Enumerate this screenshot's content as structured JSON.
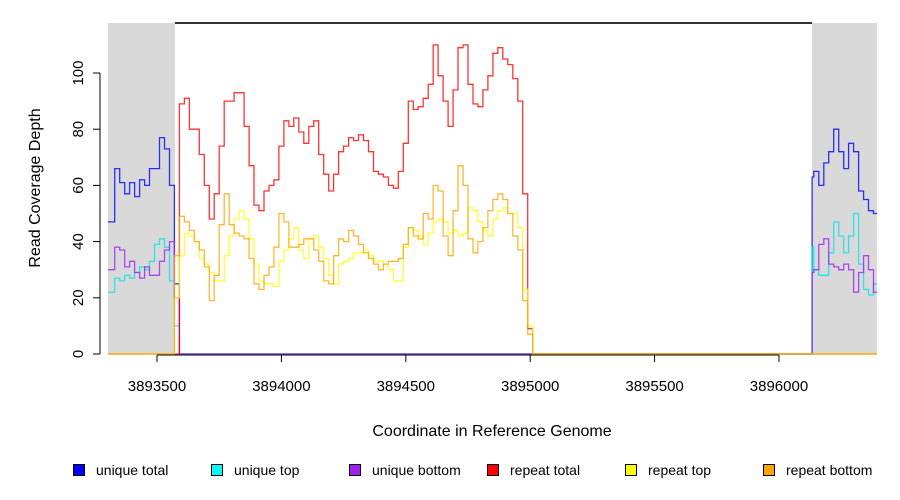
{
  "chart_data": {
    "type": "line",
    "line_style": "step",
    "title": "",
    "xlabel": "Coordinate in Reference Genome",
    "ylabel": "Read Coverage Depth",
    "xlim": [
      3893303,
      3896394
    ],
    "ylim": [
      0,
      117.8
    ],
    "xticks": [
      3893500,
      3894000,
      3894500,
      3895000,
      3895500,
      3896000
    ],
    "xtick_labels": [
      "3893500",
      "3894000",
      "3894500",
      "3895000",
      "3895500",
      "3896000"
    ],
    "yticks": [
      0,
      20,
      40,
      60,
      80,
      100
    ],
    "ytick_labels": [
      "0",
      "20",
      "40",
      "60",
      "80",
      "100"
    ],
    "grid": false,
    "legend_position": "bottom",
    "shaded_regions": [
      [
        3893303,
        3893572
      ],
      [
        3896133,
        3896394
      ]
    ],
    "shade_color": "#d9d9d9",
    "span_line": {
      "from": 3893572,
      "to": 3896133,
      "y": 117.8,
      "color": "#333333"
    },
    "series": [
      {
        "name": "unique total",
        "color": "#0000ff",
        "x": [
          3893303,
          3893310,
          3893330,
          3893350,
          3893370,
          3893390,
          3893410,
          3893430,
          3893450,
          3893470,
          3893490,
          3893510,
          3893530,
          3893550,
          3893570,
          3893590,
          3896132,
          3896133,
          3896140,
          3896160,
          3896180,
          3896200,
          3896220,
          3896240,
          3896260,
          3896280,
          3896300,
          3896320,
          3896340,
          3896360,
          3896380,
          3896394
        ],
        "y": [
          47,
          47,
          66,
          61,
          57,
          61,
          56,
          62,
          60,
          66,
          66,
          77,
          73,
          60,
          25,
          0,
          0,
          63,
          65,
          60,
          68,
          72,
          80,
          72,
          66,
          75,
          72,
          58,
          55,
          51,
          50,
          50
        ]
      },
      {
        "name": "unique top",
        "color": "#00e5ee",
        "x": [
          3893303,
          3893310,
          3893330,
          3893350,
          3893370,
          3893390,
          3893410,
          3893430,
          3893450,
          3893470,
          3893490,
          3893510,
          3893530,
          3893550,
          3893570,
          3893590,
          3896132,
          3896133,
          3896140,
          3896160,
          3896180,
          3896200,
          3896220,
          3896240,
          3896260,
          3896280,
          3896300,
          3896320,
          3896340,
          3896360,
          3896380,
          3896394
        ],
        "y": [
          22,
          22,
          27,
          26,
          28,
          27,
          29,
          31,
          30,
          33,
          39,
          41,
          38,
          26,
          10,
          0,
          0,
          38,
          30,
          28,
          28,
          36,
          47,
          42,
          36,
          42,
          50,
          32,
          23,
          21,
          25,
          25
        ]
      },
      {
        "name": "unique bottom",
        "color": "#a020f0",
        "x": [
          3893303,
          3893310,
          3893330,
          3893350,
          3893370,
          3893390,
          3893410,
          3893430,
          3893450,
          3893470,
          3893490,
          3893510,
          3893530,
          3893550,
          3893570,
          3893590,
          3896132,
          3896133,
          3896140,
          3896160,
          3896180,
          3896200,
          3896220,
          3896240,
          3896260,
          3896280,
          3896300,
          3896320,
          3896340,
          3896360,
          3896380,
          3896394
        ],
        "y": [
          30,
          30,
          38,
          37,
          31,
          33,
          29,
          27,
          31,
          28,
          28,
          33,
          37,
          40,
          20,
          0,
          0,
          29,
          30,
          39,
          41,
          32,
          31,
          30,
          32,
          30,
          22,
          29,
          35,
          30,
          22,
          22
        ]
      },
      {
        "name": "repeat total",
        "color": "#ff0000",
        "x_start": 3893570,
        "x_step": 20,
        "x_range": [
          3893303,
          3896394
        ],
        "y": [
          0,
          89,
          91,
          80,
          80,
          71,
          60,
          48,
          57,
          74,
          90,
          90,
          93,
          93,
          81,
          67,
          53,
          51,
          58,
          60,
          62,
          74,
          83,
          81,
          84,
          79,
          75,
          81,
          83,
          71,
          64,
          58,
          64,
          72,
          74,
          77,
          76,
          78,
          76,
          72,
          65,
          64,
          63,
          60,
          59,
          65,
          75,
          90,
          87,
          88,
          91,
          96,
          110,
          99,
          90,
          81,
          94,
          109,
          110,
          96,
          89,
          88,
          94,
          99,
          107,
          109,
          105,
          103,
          98,
          90,
          57,
          9,
          0
        ]
      },
      {
        "name": "repeat top",
        "color": "#ffff00",
        "x_start": 3893570,
        "x_step": 20,
        "x_range": [
          3893303,
          3896394
        ],
        "y": [
          20,
          35,
          43,
          42,
          40,
          34,
          32,
          29,
          26,
          26,
          35,
          42,
          48,
          51,
          48,
          41,
          32,
          26,
          25,
          25,
          24,
          33,
          37,
          41,
          45,
          37,
          34,
          41,
          42,
          38,
          34,
          28,
          25,
          32,
          33,
          34,
          36,
          36,
          37,
          35,
          33,
          33,
          32,
          30,
          26,
          26,
          38,
          45,
          44,
          42,
          39,
          43,
          47,
          48,
          47,
          43,
          44,
          42,
          43,
          52,
          51,
          47,
          44,
          42,
          48,
          51,
          52,
          50,
          50,
          45,
          23,
          10,
          0
        ]
      },
      {
        "name": "repeat bottom",
        "color": "#ffa500",
        "x_start": 3893570,
        "x_step": 20,
        "x_range": [
          3893303,
          3896394
        ],
        "y": [
          35,
          49,
          47,
          44,
          40,
          37,
          31,
          19,
          28,
          46,
          57,
          46,
          43,
          42,
          41,
          34,
          25,
          23,
          28,
          31,
          38,
          50,
          47,
          38,
          38,
          39,
          41,
          41,
          37,
          33,
          26,
          25,
          35,
          41,
          40,
          44,
          42,
          39,
          36,
          34,
          32,
          30,
          32,
          33,
          33,
          34,
          39,
          45,
          42,
          41,
          50,
          48,
          60,
          58,
          42,
          35,
          51,
          67,
          60,
          41,
          36,
          40,
          45,
          51,
          55,
          57,
          55,
          50,
          42,
          37,
          19,
          7,
          0
        ]
      }
    ]
  }
}
